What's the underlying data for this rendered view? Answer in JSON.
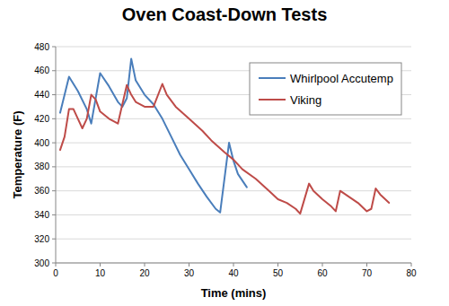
{
  "chart_data": {
    "type": "line",
    "title": "Oven Coast-Down Tests",
    "x_label": "Time (mins)",
    "y_label": "Temperature (F)",
    "xlim": [
      0,
      80
    ],
    "xticks": [
      0,
      10,
      20,
      30,
      40,
      50,
      60,
      70,
      80
    ],
    "ylim": [
      300,
      480
    ],
    "yticks": [
      300,
      320,
      340,
      360,
      380,
      400,
      420,
      440,
      460,
      480
    ],
    "grid": true,
    "legend": "upper right",
    "series": [
      {
        "name": "Whirlpool Accutemp",
        "color": "#4a7ebb",
        "x": [
          1,
          3,
          5,
          7,
          8,
          10,
          12,
          14,
          15,
          16,
          17,
          18,
          20,
          22,
          24,
          26,
          28,
          30,
          32,
          34,
          36,
          37,
          39,
          40,
          41,
          43
        ],
        "values": [
          425,
          455,
          443,
          428,
          416,
          458,
          447,
          434,
          430,
          437,
          470,
          452,
          440,
          432,
          420,
          405,
          390,
          378,
          366,
          355,
          345,
          342,
          400,
          385,
          374,
          363
        ]
      },
      {
        "name": "Viking",
        "color": "#be4b48",
        "x": [
          1,
          2,
          3,
          4,
          5,
          6,
          7,
          8,
          9,
          10,
          12,
          14,
          16,
          17,
          18,
          20,
          22,
          24,
          25,
          27,
          30,
          33,
          35,
          38,
          40,
          42,
          45,
          48,
          50,
          52,
          54,
          55,
          57,
          58,
          60,
          62,
          63,
          64,
          66,
          68,
          70,
          71,
          72,
          73,
          75
        ],
        "values": [
          394,
          405,
          428,
          428,
          420,
          412,
          420,
          440,
          436,
          426,
          420,
          416,
          448,
          440,
          434,
          430,
          430,
          449,
          440,
          430,
          420,
          410,
          402,
          392,
          386,
          378,
          370,
          360,
          353,
          350,
          345,
          341,
          366,
          360,
          353,
          347,
          343,
          360,
          355,
          350,
          343,
          345,
          362,
          357,
          350
        ]
      }
    ]
  }
}
